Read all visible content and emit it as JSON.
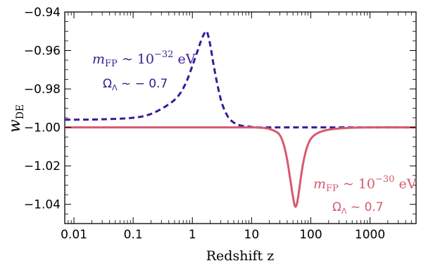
{
  "chart_data": {
    "type": "line",
    "xscale": "log",
    "xlim": [
      0.007,
      6000
    ],
    "ylim": [
      -1.05,
      -0.94
    ],
    "xlabel": "Redshift z",
    "ylabel": {
      "base": "w",
      "sub": "DE"
    },
    "x_ticks": [
      {
        "value": 0.01,
        "label": "0.01"
      },
      {
        "value": 0.1,
        "label": "0.1"
      },
      {
        "value": 1,
        "label": "1"
      },
      {
        "value": 10,
        "label": "10"
      },
      {
        "value": 100,
        "label": "100"
      },
      {
        "value": 1000,
        "label": "1000"
      }
    ],
    "y_ticks": [
      {
        "value": -0.94,
        "label": "−0.94"
      },
      {
        "value": -0.96,
        "label": "−0.96"
      },
      {
        "value": -0.98,
        "label": "−0.98"
      },
      {
        "value": -1.0,
        "label": "−1.00"
      },
      {
        "value": -1.02,
        "label": "−1.02"
      },
      {
        "value": -1.04,
        "label": "−1.04"
      }
    ],
    "grid": false,
    "series": [
      {
        "color": "#3a1a96",
        "dash": "dashed",
        "x": [
          0.007,
          0.01,
          0.03,
          0.1,
          0.2,
          0.4,
          0.6,
          0.8,
          1.0,
          1.2,
          1.4,
          1.6,
          1.7,
          1.8,
          2.0,
          2.3,
          2.7,
          3.2,
          4.0,
          5.0,
          6.5,
          8.5,
          12,
          20,
          40,
          100,
          300,
          1000,
          6000
        ],
        "y": [
          -0.996,
          -0.996,
          -0.9958,
          -0.995,
          -0.993,
          -0.988,
          -0.983,
          -0.976,
          -0.968,
          -0.961,
          -0.955,
          -0.951,
          -0.95,
          -0.951,
          -0.957,
          -0.968,
          -0.979,
          -0.988,
          -0.9945,
          -0.9975,
          -0.999,
          -0.9995,
          -1.0,
          -1.0,
          -1.0,
          -1.0,
          -1.0,
          -1.0,
          -1.0
        ]
      },
      {
        "color": "#d65a6e",
        "dash": "solid",
        "x": [
          0.007,
          1,
          10,
          18,
          25,
          30,
          35,
          40,
          45,
          50,
          54,
          58,
          62,
          68,
          75,
          85,
          100,
          130,
          200,
          400,
          1000,
          6000
        ],
        "y": [
          -1.0,
          -1.0,
          -1.0,
          -1.0005,
          -1.002,
          -1.004,
          -1.009,
          -1.017,
          -1.027,
          -1.036,
          -1.041,
          -1.04,
          -1.035,
          -1.026,
          -1.018,
          -1.011,
          -1.006,
          -1.003,
          -1.0012,
          -1.0003,
          -1.0,
          -1.0
        ]
      }
    ],
    "annotations": [
      {
        "id": "fp32",
        "color": "#3a1a96",
        "line1": {
          "m": "m",
          "sub": "FP",
          "approx": " ~ 10",
          "exp": "−32",
          "unit": " eV"
        },
        "line2": {
          "omega": "Ω",
          "sub": "Λ",
          "text": " ~ − 0.7"
        }
      },
      {
        "id": "fp30",
        "color": "#d65a6e",
        "line1": {
          "m": "m",
          "sub": "FP",
          "approx": " ~ 10",
          "exp": "−30",
          "unit": " eV"
        },
        "line2": {
          "omega": "Ω",
          "sub": "Λ",
          "text": " ~ 0.7"
        }
      }
    ]
  }
}
